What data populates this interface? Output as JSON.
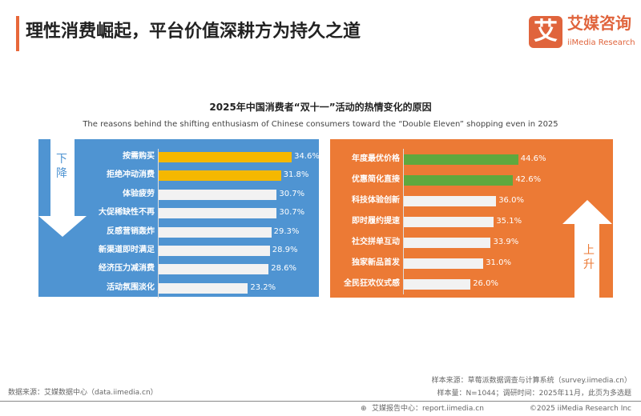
{
  "header": {
    "title": "理性消费崛起，平台价值深耕方为持久之道",
    "logo_mark": "艾",
    "logo_cn": "艾媒咨询",
    "logo_en": "iiMedia Research"
  },
  "colors": {
    "blue_panel": "#4f94d2",
    "orange_panel": "#ec7a35",
    "highlight_yellow": "#f5b800",
    "highlight_green": "#5fa83e",
    "neutral_bar": "#f2f2f2"
  },
  "chart_data": [
    {
      "type": "bar",
      "orientation": "horizontal",
      "title": "2025年中国消费者“双十一”活动的热情变化的原因",
      "subtitle": "The reasons behind the shifting enthusiasm of Chinese consumers toward the “Double Eleven” shopping even in 2025",
      "panel_label": "下降",
      "categories": [
        "按需购买",
        "拒绝冲动消费",
        "体验疲劳",
        "大促稀缺性不再",
        "反感营销轰炸",
        "新渠道即时满足",
        "经济压力减消费",
        "活动氛围淡化"
      ],
      "values": [
        34.6,
        31.8,
        30.7,
        30.7,
        29.3,
        28.9,
        28.6,
        23.2
      ],
      "labels": [
        "34.6%",
        "31.8%",
        "30.7%",
        "30.7%",
        "29.3%",
        "28.9%",
        "28.6%",
        "23.2%"
      ],
      "highlighted": [
        0,
        1
      ]
    },
    {
      "type": "bar",
      "orientation": "horizontal",
      "panel_label": "上升",
      "categories": [
        "年度最优价格",
        "优惠简化直接",
        "科技体验创新",
        "即时履约提速",
        "社交拼单互动",
        "独家新品首发",
        "全民狂欢仪式感"
      ],
      "values": [
        44.6,
        42.6,
        36.0,
        35.1,
        33.9,
        31.0,
        26.0
      ],
      "labels": [
        "44.6%",
        "42.6%",
        "36.0%",
        "35.1%",
        "33.9%",
        "31.0%",
        "26.0%"
      ],
      "highlighted": [
        0,
        1
      ]
    }
  ],
  "footer": {
    "source": "数据来源：艾媒数据中心（data.iimedia.cn）",
    "sample_source": "样本来源：草莓派数据调查与计算系统（survey.iimedia.cn）",
    "sample_size": "样本量：N=1044；调研时间：2025年11月，此页为多选题",
    "report": "艾媒报告中心：report.iimedia.cn",
    "copyright": "©2025  iiMedia Research  Inc"
  }
}
